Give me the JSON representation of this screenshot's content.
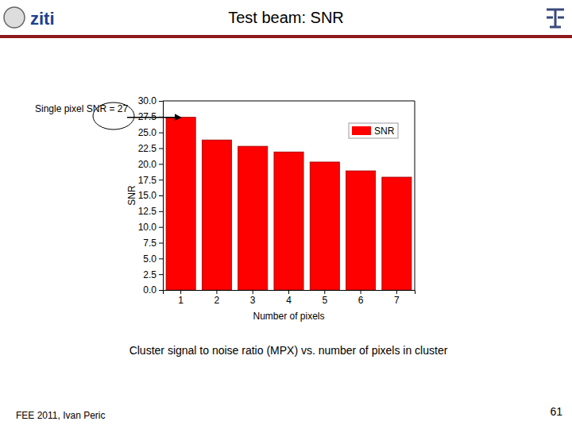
{
  "slide": {
    "title": "Test beam: SNR",
    "caption": "Cluster signal to noise ratio (MPX) vs. number of pixels in cluster",
    "footer": "FEE 2011, Ivan Peric",
    "page": "61",
    "logo": "ziti"
  },
  "chart_data": {
    "type": "bar",
    "x_label": "Number of pixels",
    "y_label": "SNR",
    "categories": [
      "1",
      "2",
      "3",
      "4",
      "5",
      "6",
      "7"
    ],
    "series": [
      {
        "name": "SNR",
        "color": "#ff0000",
        "values": [
          27.4,
          23.8,
          22.8,
          21.9,
          20.3,
          18.9,
          17.9
        ]
      }
    ],
    "ylim": [
      0,
      30
    ],
    "yticks": [
      {
        "value": 0,
        "label": "0.0"
      },
      {
        "value": 2.5,
        "label": "2.5"
      },
      {
        "value": 5,
        "label": "5.0"
      },
      {
        "value": 7.5,
        "label": "7.5"
      },
      {
        "value": 10,
        "label": "10.0"
      },
      {
        "value": 12.5,
        "label": "12.5"
      },
      {
        "value": 15,
        "label": "15.0"
      },
      {
        "value": 17.5,
        "label": "17.5"
      },
      {
        "value": 20,
        "label": "20.0"
      },
      {
        "value": 22.5,
        "label": "22.5"
      },
      {
        "value": 25,
        "label": "25.0"
      },
      {
        "value": 27.5,
        "label": "27.5"
      },
      {
        "value": 30,
        "label": "30.0"
      }
    ],
    "legend": "top-right",
    "annotations": [
      {
        "text": "Single pixel SNR = 27"
      }
    ]
  }
}
